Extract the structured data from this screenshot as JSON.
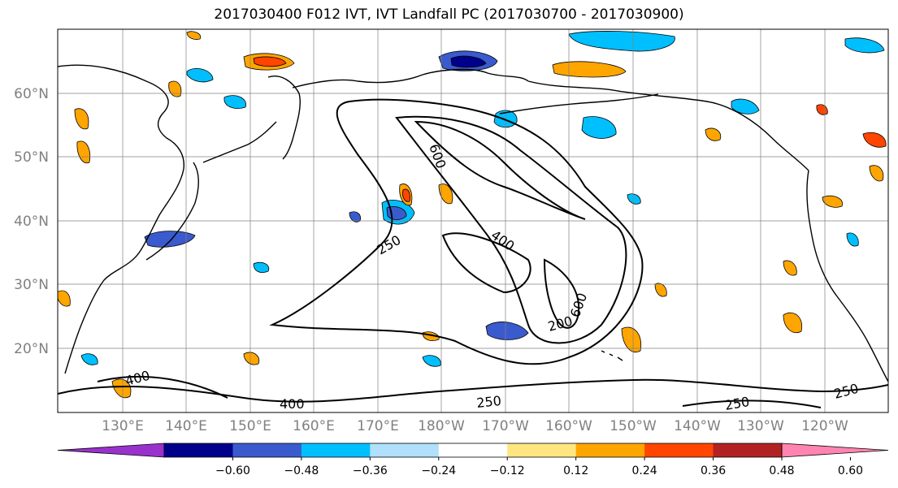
{
  "title": "2017030400 F012 IVT, IVT Landfall PC (2017030700 - 2017030900)",
  "map": {
    "lat_labels": [
      "60°N",
      "50°N",
      "40°N",
      "30°N",
      "20°N"
    ],
    "lon_labels": [
      "130°E",
      "140°E",
      "150°E",
      "160°E",
      "170°E",
      "180°W",
      "170°W",
      "160°W",
      "150°W",
      "140°W",
      "130°W",
      "120°W"
    ],
    "contour_labels": [
      "600",
      "400",
      "250",
      "200",
      "600",
      "400",
      "250",
      "400",
      "250",
      "250"
    ]
  },
  "colorbar": {
    "tick_labels": [
      "−0.60",
      "−0.48",
      "−0.36",
      "−0.24",
      "−0.12",
      "0.12",
      "0.24",
      "0.36",
      "0.48",
      "0.60"
    ],
    "colors": [
      "#9932cc",
      "#00008b",
      "#3a5bcd",
      "#00bfff",
      "#b0e0fb",
      "#ffffff",
      "#ffe680",
      "#ffa500",
      "#ff4500",
      "#b22222",
      "#ff85b0"
    ]
  }
}
